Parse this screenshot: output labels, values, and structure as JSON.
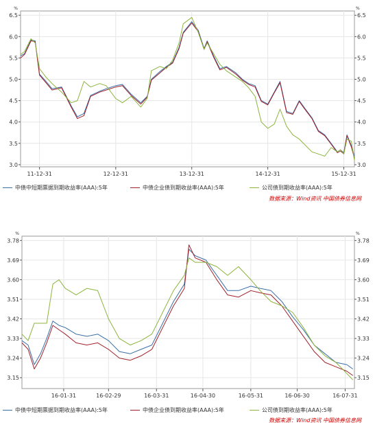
{
  "colors": {
    "series1": "#3a6ea5",
    "series2": "#a0202a",
    "series3": "#8cb43c",
    "source": "#d00000",
    "grid": "#e6e6e6",
    "axis": "#555555"
  },
  "legend": {
    "s1": "中债中短期票据到期收益率(AAA):5年",
    "s2": "中债企业债到期收益率(AAA):5年",
    "s3": "公司债到期收益率(AAA):5年"
  },
  "source": "数据来源：Wind资讯 中国债券信息网",
  "chart_data": [
    {
      "type": "line",
      "unit_label": "%",
      "ylim": [
        2.95,
        6.6
      ],
      "yticks": [
        3.0,
        3.5,
        4.0,
        4.5,
        5.0,
        5.5,
        6.0,
        6.5
      ],
      "ytick_labels": [
        "3.0",
        "3.5",
        "4.0",
        "4.5",
        "5.0",
        "5.5",
        "6.0",
        "6.5"
      ],
      "xlim": [
        "2011-10-01",
        "2016-02-20"
      ],
      "xticks": [
        "2011-12-31",
        "2012-12-31",
        "2013-12-31",
        "2014-12-31",
        "2015-12-31"
      ],
      "xtick_labels": [
        "11-12-31",
        "12-12-31",
        "13-12-31",
        "14-12-31",
        "15-12-31"
      ],
      "grid": true,
      "legend_position": "bottom",
      "series": [
        {
          "name": "中债中短期票据到期收益率(AAA):5年",
          "x": [
            "2011-10-01",
            "2011-10-20",
            "2011-11-20",
            "2011-12-10",
            "2011-12-31",
            "2012-01-31",
            "2012-02-29",
            "2012-04-15",
            "2012-05-31",
            "2012-06-30",
            "2012-07-31",
            "2012-09-01",
            "2012-10-15",
            "2012-11-15",
            "2012-12-31",
            "2013-02-01",
            "2013-03-15",
            "2013-04-30",
            "2013-05-31",
            "2013-06-20",
            "2013-07-31",
            "2013-08-31",
            "2013-09-30",
            "2013-10-31",
            "2013-11-20",
            "2013-12-31",
            "2014-01-31",
            "2014-02-28",
            "2014-03-15",
            "2014-04-15",
            "2014-05-15",
            "2014-06-15",
            "2014-07-31",
            "2014-08-31",
            "2014-09-30",
            "2014-10-31",
            "2014-11-30",
            "2014-12-31",
            "2015-01-31",
            "2015-02-28",
            "2015-03-31",
            "2015-04-30",
            "2015-05-31",
            "2015-06-30",
            "2015-07-31",
            "2015-08-31",
            "2015-09-30",
            "2015-10-31",
            "2015-11-30",
            "2015-12-15",
            "2015-12-31",
            "2016-01-15",
            "2016-02-05",
            "2016-02-20"
          ],
          "y": [
            5.55,
            5.6,
            5.92,
            5.9,
            5.12,
            4.95,
            4.78,
            4.82,
            4.38,
            4.12,
            4.2,
            4.62,
            4.72,
            4.78,
            4.85,
            4.88,
            4.65,
            4.45,
            4.6,
            5.0,
            5.18,
            5.3,
            5.4,
            5.75,
            6.1,
            6.35,
            6.15,
            5.72,
            5.9,
            5.55,
            5.25,
            5.3,
            5.15,
            5.0,
            4.9,
            4.85,
            4.5,
            4.42,
            4.7,
            4.95,
            4.25,
            4.2,
            4.5,
            4.3,
            4.1,
            3.8,
            3.7,
            3.5,
            3.3,
            3.35,
            3.28,
            3.7,
            3.45,
            3.2
          ]
        },
        {
          "name": "中债企业债到期收益率(AAA):5年",
          "x": [
            "2011-10-01",
            "2011-10-20",
            "2011-11-20",
            "2011-12-10",
            "2011-12-31",
            "2012-01-31",
            "2012-02-29",
            "2012-04-15",
            "2012-05-31",
            "2012-06-30",
            "2012-07-31",
            "2012-09-01",
            "2012-10-15",
            "2012-11-15",
            "2012-12-31",
            "2013-02-01",
            "2013-03-15",
            "2013-04-30",
            "2013-05-31",
            "2013-06-20",
            "2013-07-31",
            "2013-08-31",
            "2013-09-30",
            "2013-10-31",
            "2013-11-20",
            "2013-12-31",
            "2014-01-31",
            "2014-02-28",
            "2014-03-15",
            "2014-04-15",
            "2014-05-15",
            "2014-06-15",
            "2014-07-31",
            "2014-08-31",
            "2014-09-30",
            "2014-10-31",
            "2014-11-30",
            "2014-12-31",
            "2015-01-31",
            "2015-02-28",
            "2015-03-31",
            "2015-04-30",
            "2015-05-31",
            "2015-06-30",
            "2015-07-31",
            "2015-08-31",
            "2015-09-30",
            "2015-10-31",
            "2015-11-30",
            "2015-12-15",
            "2015-12-31",
            "2016-01-15",
            "2016-02-05",
            "2016-02-20"
          ],
          "y": [
            5.5,
            5.58,
            5.9,
            5.88,
            5.1,
            4.92,
            4.75,
            4.8,
            4.35,
            4.08,
            4.15,
            4.6,
            4.7,
            4.75,
            4.82,
            4.85,
            4.62,
            4.42,
            4.58,
            4.98,
            5.15,
            5.28,
            5.38,
            5.72,
            6.08,
            6.32,
            6.12,
            5.7,
            5.88,
            5.52,
            5.22,
            5.28,
            5.12,
            4.98,
            4.88,
            4.82,
            4.48,
            4.4,
            4.68,
            4.92,
            4.22,
            4.18,
            4.48,
            4.28,
            4.08,
            3.78,
            3.68,
            3.48,
            3.28,
            3.32,
            3.25,
            3.68,
            3.42,
            3.15
          ]
        },
        {
          "name": "公司债到期收益率(AAA):5年",
          "x": [
            "2011-10-01",
            "2011-10-20",
            "2011-11-20",
            "2011-12-10",
            "2011-12-31",
            "2012-01-31",
            "2012-02-29",
            "2012-04-15",
            "2012-05-31",
            "2012-06-30",
            "2012-07-31",
            "2012-09-01",
            "2012-10-15",
            "2012-11-15",
            "2012-12-31",
            "2013-02-01",
            "2013-03-15",
            "2013-04-30",
            "2013-05-31",
            "2013-06-20",
            "2013-07-31",
            "2013-08-31",
            "2013-09-30",
            "2013-10-31",
            "2013-11-20",
            "2013-12-31",
            "2014-01-31",
            "2014-02-28",
            "2014-03-15",
            "2014-04-15",
            "2014-05-15",
            "2014-06-15",
            "2014-07-31",
            "2014-08-31",
            "2014-09-30",
            "2014-10-31",
            "2014-11-30",
            "2014-12-31",
            "2015-01-31",
            "2015-02-28",
            "2015-03-31",
            "2015-04-30",
            "2015-05-31",
            "2015-06-30",
            "2015-07-31",
            "2015-08-31",
            "2015-09-30",
            "2015-10-31",
            "2015-11-30",
            "2015-12-15",
            "2015-12-31",
            "2016-01-15",
            "2016-02-05",
            "2016-02-20"
          ],
          "y": [
            5.58,
            5.65,
            5.95,
            5.85,
            5.25,
            5.05,
            4.9,
            4.7,
            4.45,
            4.5,
            4.95,
            4.82,
            4.9,
            4.85,
            4.55,
            4.45,
            4.6,
            4.35,
            4.55,
            5.2,
            5.3,
            5.25,
            5.45,
            5.85,
            6.3,
            6.45,
            6.1,
            5.7,
            5.85,
            5.6,
            5.35,
            5.2,
            5.05,
            4.95,
            4.8,
            4.6,
            4.0,
            3.85,
            3.95,
            4.3,
            3.9,
            3.7,
            3.6,
            3.45,
            3.3,
            3.25,
            3.2,
            3.4,
            3.3,
            3.35,
            3.25,
            3.6,
            3.55,
            3.1
          ]
        }
      ]
    },
    {
      "type": "line",
      "unit_label": "%",
      "ylim": [
        3.1,
        3.8
      ],
      "yticks": [
        3.15,
        3.24,
        3.33,
        3.42,
        3.51,
        3.6,
        3.69,
        3.78
      ],
      "ytick_labels": [
        "3.15",
        "3.24",
        "3.33",
        "3.42",
        "3.51",
        "3.60",
        "3.69",
        "3.78"
      ],
      "xlim": [
        "2016-01-04",
        "2016-08-06"
      ],
      "xticks": [
        "2016-01-31",
        "2016-02-29",
        "2016-03-31",
        "2016-04-30",
        "2016-05-31",
        "2016-06-30",
        "2016-07-31"
      ],
      "xtick_labels": [
        "16-01-31",
        "16-02-29",
        "16-03-31",
        "16-04-30",
        "16-05-31",
        "16-06-30",
        "16-07-31"
      ],
      "grid": true,
      "legend_position": "bottom",
      "series": [
        {
          "name": "中债中短期票据到期收益率(AAA):5年",
          "x": [
            "2016-01-04",
            "2016-01-08",
            "2016-01-12",
            "2016-01-16",
            "2016-01-20",
            "2016-01-24",
            "2016-01-28",
            "2016-02-01",
            "2016-02-08",
            "2016-02-15",
            "2016-02-22",
            "2016-02-29",
            "2016-03-07",
            "2016-03-14",
            "2016-03-21",
            "2016-03-28",
            "2016-04-04",
            "2016-04-11",
            "2016-04-18",
            "2016-04-21",
            "2016-04-25",
            "2016-05-02",
            "2016-05-09",
            "2016-05-16",
            "2016-05-23",
            "2016-05-31",
            "2016-06-06",
            "2016-06-13",
            "2016-06-20",
            "2016-06-27",
            "2016-07-04",
            "2016-07-11",
            "2016-07-18",
            "2016-07-25",
            "2016-08-01",
            "2016-08-05"
          ],
          "y": [
            3.32,
            3.3,
            3.21,
            3.26,
            3.33,
            3.41,
            3.39,
            3.38,
            3.35,
            3.34,
            3.35,
            3.32,
            3.27,
            3.26,
            3.28,
            3.3,
            3.4,
            3.5,
            3.58,
            3.74,
            3.71,
            3.69,
            3.62,
            3.55,
            3.55,
            3.57,
            3.56,
            3.55,
            3.5,
            3.43,
            3.37,
            3.3,
            3.26,
            3.22,
            3.21,
            3.19
          ]
        },
        {
          "name": "中债企业债到期收益率(AAA):5年",
          "x": [
            "2016-01-04",
            "2016-01-08",
            "2016-01-12",
            "2016-01-16",
            "2016-01-20",
            "2016-01-24",
            "2016-01-28",
            "2016-02-01",
            "2016-02-08",
            "2016-02-15",
            "2016-02-22",
            "2016-02-29",
            "2016-03-07",
            "2016-03-14",
            "2016-03-21",
            "2016-03-28",
            "2016-04-04",
            "2016-04-11",
            "2016-04-18",
            "2016-04-21",
            "2016-04-25",
            "2016-05-02",
            "2016-05-09",
            "2016-05-16",
            "2016-05-23",
            "2016-05-31",
            "2016-06-06",
            "2016-06-13",
            "2016-06-20",
            "2016-06-27",
            "2016-07-04",
            "2016-07-11",
            "2016-07-18",
            "2016-07-25",
            "2016-08-01",
            "2016-08-05"
          ],
          "y": [
            3.31,
            3.28,
            3.19,
            3.24,
            3.31,
            3.39,
            3.37,
            3.35,
            3.31,
            3.3,
            3.31,
            3.28,
            3.24,
            3.23,
            3.25,
            3.28,
            3.38,
            3.48,
            3.56,
            3.76,
            3.7,
            3.68,
            3.6,
            3.53,
            3.52,
            3.55,
            3.54,
            3.53,
            3.48,
            3.41,
            3.34,
            3.27,
            3.22,
            3.2,
            3.18,
            3.16
          ]
        },
        {
          "name": "公司债到期收益率(AAA):5年",
          "x": [
            "2016-01-04",
            "2016-01-08",
            "2016-01-12",
            "2016-01-16",
            "2016-01-20",
            "2016-01-24",
            "2016-01-28",
            "2016-02-01",
            "2016-02-08",
            "2016-02-15",
            "2016-02-22",
            "2016-02-29",
            "2016-03-07",
            "2016-03-14",
            "2016-03-21",
            "2016-03-28",
            "2016-04-04",
            "2016-04-11",
            "2016-04-18",
            "2016-04-21",
            "2016-04-25",
            "2016-05-02",
            "2016-05-09",
            "2016-05-16",
            "2016-05-23",
            "2016-05-31",
            "2016-06-06",
            "2016-06-13",
            "2016-06-20",
            "2016-06-27",
            "2016-07-04",
            "2016-07-11",
            "2016-07-18",
            "2016-07-25",
            "2016-08-01",
            "2016-08-05"
          ],
          "y": [
            3.35,
            3.32,
            3.4,
            3.4,
            3.4,
            3.58,
            3.6,
            3.56,
            3.53,
            3.56,
            3.55,
            3.42,
            3.33,
            3.3,
            3.32,
            3.35,
            3.45,
            3.55,
            3.62,
            3.7,
            3.68,
            3.68,
            3.66,
            3.62,
            3.66,
            3.6,
            3.55,
            3.5,
            3.48,
            3.45,
            3.38,
            3.3,
            3.25,
            3.22,
            3.17,
            3.14
          ]
        }
      ]
    }
  ]
}
